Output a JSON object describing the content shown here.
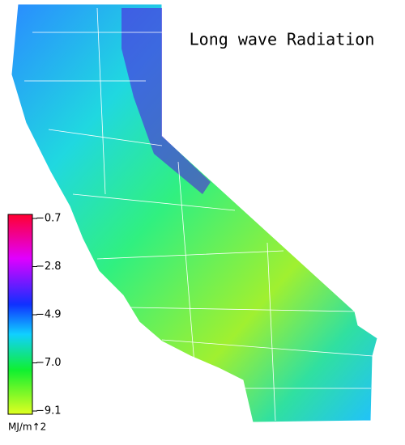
{
  "title": "Long wave Radiation",
  "colorbar": {
    "lim": [
      -9.1,
      -0.7
    ],
    "ticks": [
      {
        "value": -0.7,
        "label": "−0.7"
      },
      {
        "value": -2.8,
        "label": "−2.8"
      },
      {
        "value": -4.9,
        "label": "−4.9"
      },
      {
        "value": -7.0,
        "label": "−7.0"
      },
      {
        "value": -9.1,
        "label": "−9.1"
      }
    ],
    "unit": "MJ/m↑2"
  }
}
